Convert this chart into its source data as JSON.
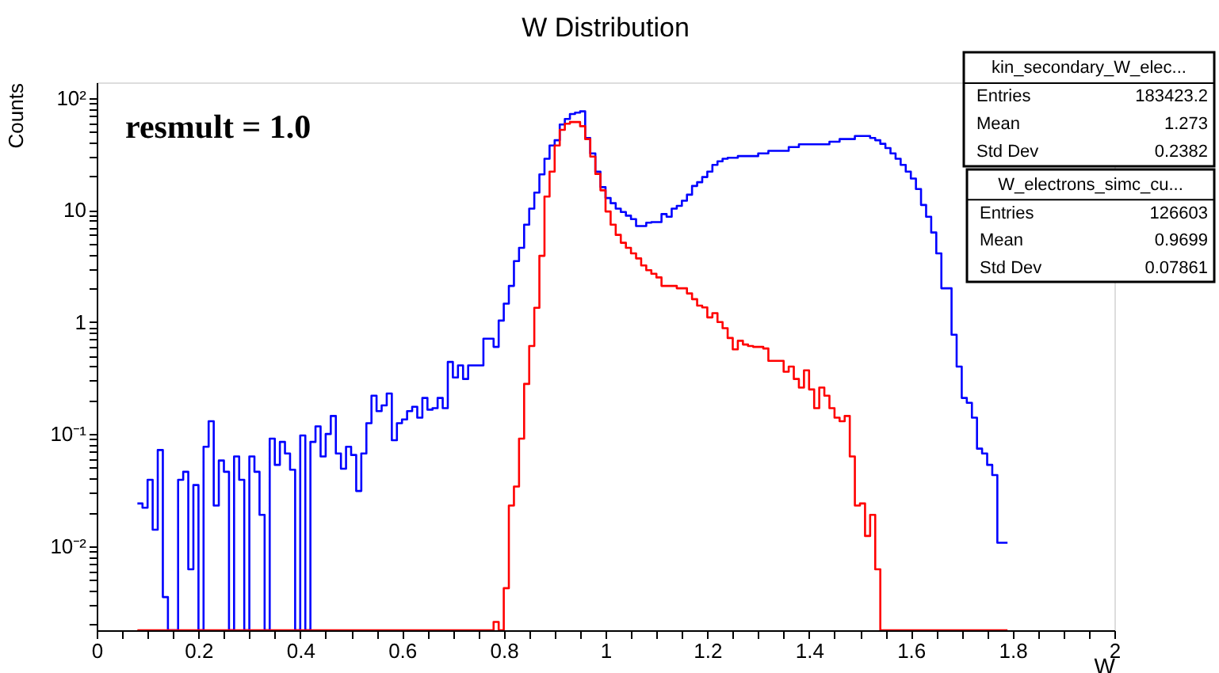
{
  "chart_data": {
    "type": "histogram",
    "title": "W Distribution",
    "xlabel": "W",
    "ylabel": "Counts",
    "log": "y",
    "grid": false,
    "legend": false,
    "line_style": "solid",
    "xlim": [
      0,
      2
    ],
    "ylim": [
      0.00177,
      138
    ],
    "xticks": [
      0,
      {
        "value": 0.05,
        "label": null
      },
      {
        "value": 0.1,
        "label": null
      },
      {
        "value": 0.15,
        "label": null
      },
      0.2,
      {
        "value": 0.25,
        "label": null
      },
      {
        "value": 0.3,
        "label": null
      },
      {
        "value": 0.35,
        "label": null
      },
      0.4,
      {
        "value": 0.45,
        "label": null
      },
      {
        "value": 0.5,
        "label": null
      },
      {
        "value": 0.55,
        "label": null
      },
      0.6,
      {
        "value": 0.65,
        "label": null
      },
      {
        "value": 0.7,
        "label": null
      },
      {
        "value": 0.75,
        "label": null
      },
      0.8,
      {
        "value": 0.85,
        "label": null
      },
      {
        "value": 0.9,
        "label": null
      },
      {
        "value": 0.95,
        "label": null
      },
      1,
      {
        "value": 1.05,
        "label": null
      },
      {
        "value": 1.1,
        "label": null
      },
      {
        "value": 1.15,
        "label": null
      },
      1.2,
      {
        "value": 1.25,
        "label": null
      },
      {
        "value": 1.3,
        "label": null
      },
      {
        "value": 1.35,
        "label": null
      },
      1.4,
      {
        "value": 1.45,
        "label": null
      },
      {
        "value": 1.5,
        "label": null
      },
      {
        "value": 1.55,
        "label": null
      },
      1.6,
      {
        "value": 1.65,
        "label": null
      },
      {
        "value": 1.7,
        "label": null
      },
      {
        "value": 1.75,
        "label": null
      },
      1.8,
      {
        "value": 1.85,
        "label": null
      },
      {
        "value": 1.9,
        "label": null
      },
      {
        "value": 1.95,
        "label": null
      },
      2
    ],
    "yticks": [
      {
        "value": 0.002,
        "label": null
      },
      {
        "value": 0.003,
        "label": null
      },
      {
        "value": 0.004,
        "label": null
      },
      {
        "value": 0.005,
        "label": null
      },
      {
        "value": 0.006,
        "label": null
      },
      {
        "value": 0.007,
        "label": null
      },
      {
        "value": 0.008,
        "label": null
      },
      {
        "value": 0.009,
        "label": null
      },
      {
        "value": 0.01,
        "label": "10⁻²"
      },
      {
        "value": 0.02,
        "label": null
      },
      {
        "value": 0.03,
        "label": null
      },
      {
        "value": 0.04,
        "label": null
      },
      {
        "value": 0.05,
        "label": null
      },
      {
        "value": 0.06,
        "label": null
      },
      {
        "value": 0.07,
        "label": null
      },
      {
        "value": 0.08,
        "label": null
      },
      {
        "value": 0.09,
        "label": null
      },
      {
        "value": 0.1,
        "label": "10⁻¹"
      },
      {
        "value": 0.2,
        "label": null
      },
      {
        "value": 0.3,
        "label": null
      },
      {
        "value": 0.4,
        "label": null
      },
      {
        "value": 0.5,
        "label": null
      },
      {
        "value": 0.6,
        "label": null
      },
      {
        "value": 0.7,
        "label": null
      },
      {
        "value": 0.8,
        "label": null
      },
      {
        "value": 0.9,
        "label": null
      },
      1,
      {
        "value": 2,
        "label": null
      },
      {
        "value": 3,
        "label": null
      },
      {
        "value": 4,
        "label": null
      },
      {
        "value": 5,
        "label": null
      },
      {
        "value": 6,
        "label": null
      },
      {
        "value": 7,
        "label": null
      },
      {
        "value": 8,
        "label": null
      },
      {
        "value": 9,
        "label": null
      },
      10,
      {
        "value": 20,
        "label": null
      },
      {
        "value": 30,
        "label": null
      },
      {
        "value": 40,
        "label": null
      },
      {
        "value": 50,
        "label": null
      },
      {
        "value": 60,
        "label": null
      },
      {
        "value": 70,
        "label": null
      },
      {
        "value": 80,
        "label": null
      },
      {
        "value": 90,
        "label": null
      },
      {
        "value": 100,
        "label": "10²"
      }
    ],
    "bins": [
      0.08,
      0.09,
      0.1,
      0.11,
      0.12,
      0.13,
      0.14,
      0.15,
      0.16,
      0.17,
      0.18,
      0.19,
      0.2,
      0.21,
      0.22,
      0.23,
      0.24,
      0.25,
      0.26,
      0.27,
      0.28,
      0.29,
      0.3,
      0.31,
      0.32,
      0.33,
      0.34,
      0.35,
      0.36,
      0.37,
      0.38,
      0.39,
      0.4,
      0.41,
      0.42,
      0.43,
      0.44,
      0.45,
      0.46,
      0.47,
      0.48,
      0.49,
      0.5,
      0.51,
      0.52,
      0.53,
      0.54,
      0.55,
      0.56,
      0.57,
      0.58,
      0.59,
      0.6,
      0.61,
      0.62,
      0.63,
      0.64,
      0.65,
      0.66,
      0.67,
      0.68,
      0.69,
      0.7,
      0.71,
      0.72,
      0.73,
      0.74,
      0.75,
      0.76,
      0.77,
      0.78,
      0.79,
      0.8,
      0.81,
      0.82,
      0.83,
      0.84,
      0.85,
      0.86,
      0.87,
      0.88,
      0.89,
      0.9,
      0.91,
      0.92,
      0.93,
      0.94,
      0.95,
      0.96,
      0.97,
      0.98,
      0.99,
      1.0,
      1.01,
      1.02,
      1.03,
      1.04,
      1.05,
      1.06,
      1.07,
      1.08,
      1.09,
      1.1,
      1.11,
      1.12,
      1.13,
      1.14,
      1.15,
      1.16,
      1.17,
      1.18,
      1.19,
      1.2,
      1.21,
      1.22,
      1.23,
      1.24,
      1.25,
      1.26,
      1.27,
      1.28,
      1.29,
      1.3,
      1.31,
      1.32,
      1.33,
      1.34,
      1.35,
      1.36,
      1.37,
      1.38,
      1.39,
      1.4,
      1.41,
      1.42,
      1.43,
      1.44,
      1.45,
      1.46,
      1.47,
      1.48,
      1.49,
      1.5,
      1.51,
      1.52,
      1.53,
      1.54,
      1.55,
      1.56,
      1.57,
      1.58,
      1.59,
      1.6,
      1.61,
      1.62,
      1.63,
      1.64,
      1.65,
      1.66,
      1.67,
      1.68,
      1.69,
      1.7,
      1.71,
      1.72,
      1.73,
      1.74,
      1.75,
      1.76,
      1.77,
      1.78,
      1.79
    ],
    "series": [
      {
        "color": "#0000ff",
        "values": [
          0.024,
          0.022,
          0.039,
          0.014,
          0.072,
          0.0035,
          null,
          null,
          0.039,
          0.046,
          0.0062,
          0.035,
          null,
          0.077,
          0.13,
          0.023,
          0.058,
          0.046,
          null,
          0.063,
          0.039,
          null,
          0.063,
          0.046,
          0.019,
          null,
          0.091,
          0.053,
          0.085,
          0.067,
          0.048,
          null,
          0.097,
          null,
          0.085,
          0.117,
          0.063,
          0.1,
          0.145,
          0.067,
          0.049,
          0.077,
          0.065,
          0.031,
          0.067,
          0.125,
          0.22,
          0.16,
          0.18,
          0.23,
          0.088,
          0.125,
          0.135,
          0.16,
          0.175,
          0.14,
          0.21,
          0.165,
          0.17,
          0.21,
          0.17,
          0.44,
          0.32,
          0.41,
          0.31,
          0.41,
          0.41,
          0.41,
          0.71,
          0.71,
          0.6,
          1.03,
          1.46,
          2.1,
          3.5,
          4.6,
          7.4,
          10.3,
          14.3,
          20.8,
          28.7,
          37.7,
          42,
          58,
          65,
          72,
          74,
          76,
          44,
          32,
          22,
          16,
          12.8,
          11.5,
          10.3,
          9.6,
          8.9,
          8.3,
          7.2,
          7.2,
          7.7,
          7.8,
          7.8,
          9.2,
          8.7,
          10.3,
          10.9,
          12.1,
          13.7,
          16.4,
          17.7,
          19.7,
          22,
          25.3,
          27.2,
          28.7,
          29.3,
          29.3,
          30.3,
          30.3,
          30.3,
          30.3,
          32,
          32,
          33.8,
          33.8,
          33.8,
          33.8,
          36.5,
          36.5,
          38.6,
          38.6,
          38.6,
          38.6,
          38.6,
          38.6,
          40.7,
          40.7,
          43,
          43,
          43,
          45.8,
          45.8,
          45.8,
          44,
          42,
          39,
          35.7,
          32,
          28.7,
          25.3,
          22,
          19.1,
          15.4,
          11.1,
          8.7,
          6.3,
          4.1,
          2.0,
          2.0,
          0.77,
          0.4,
          0.21,
          0.19,
          0.14,
          0.074,
          0.067,
          0.053,
          0.043,
          0.0107,
          0.0107
        ]
      },
      {
        "color": "#ff0000",
        "values": [
          null,
          null,
          null,
          null,
          null,
          null,
          null,
          null,
          null,
          null,
          null,
          null,
          null,
          null,
          null,
          null,
          null,
          null,
          null,
          null,
          null,
          null,
          null,
          null,
          null,
          null,
          null,
          null,
          null,
          null,
          null,
          null,
          null,
          null,
          null,
          null,
          null,
          null,
          null,
          null,
          null,
          null,
          null,
          null,
          null,
          null,
          null,
          null,
          null,
          null,
          null,
          null,
          null,
          null,
          null,
          null,
          null,
          null,
          null,
          null,
          null,
          null,
          null,
          null,
          null,
          null,
          null,
          null,
          null,
          null,
          0.0021,
          null,
          0.0042,
          0.023,
          0.034,
          0.091,
          0.28,
          0.61,
          1.34,
          3.9,
          13.2,
          22,
          37.7,
          52,
          59,
          61,
          61,
          56,
          43,
          30,
          21,
          15,
          9.7,
          7.4,
          6,
          5.1,
          4.6,
          4.1,
          3.7,
          3.2,
          2.9,
          2.7,
          2.5,
          2.1,
          2.1,
          2.1,
          2.0,
          2.0,
          1.8,
          1.6,
          1.4,
          1.35,
          1.1,
          1.2,
          1.0,
          0.88,
          0.72,
          0.57,
          0.68,
          0.63,
          0.61,
          0.6,
          0.6,
          0.58,
          0.45,
          0.45,
          0.45,
          0.36,
          0.4,
          0.31,
          0.26,
          0.37,
          0.25,
          0.17,
          0.26,
          0.22,
          0.17,
          0.14,
          0.13,
          0.145,
          0.063,
          0.023,
          0.024,
          0.0123,
          0.019,
          0.0062,
          null,
          null,
          null,
          null,
          null,
          null,
          null,
          null,
          null,
          null,
          null,
          null,
          null,
          null,
          null,
          null,
          null,
          null,
          null,
          null,
          null,
          null,
          null,
          null,
          null
        ]
      }
    ],
    "annotations": [
      "resmult = 1.0",
      "kin_secondary_W_elec...",
      "Entries",
      "183423.2",
      "Mean",
      "1.273",
      "Std Dev",
      "0.2382",
      "W_electrons_simc_cu...",
      "Entries",
      "126603",
      "Mean",
      "0.9699",
      "Std Dev",
      "0.07861"
    ]
  }
}
